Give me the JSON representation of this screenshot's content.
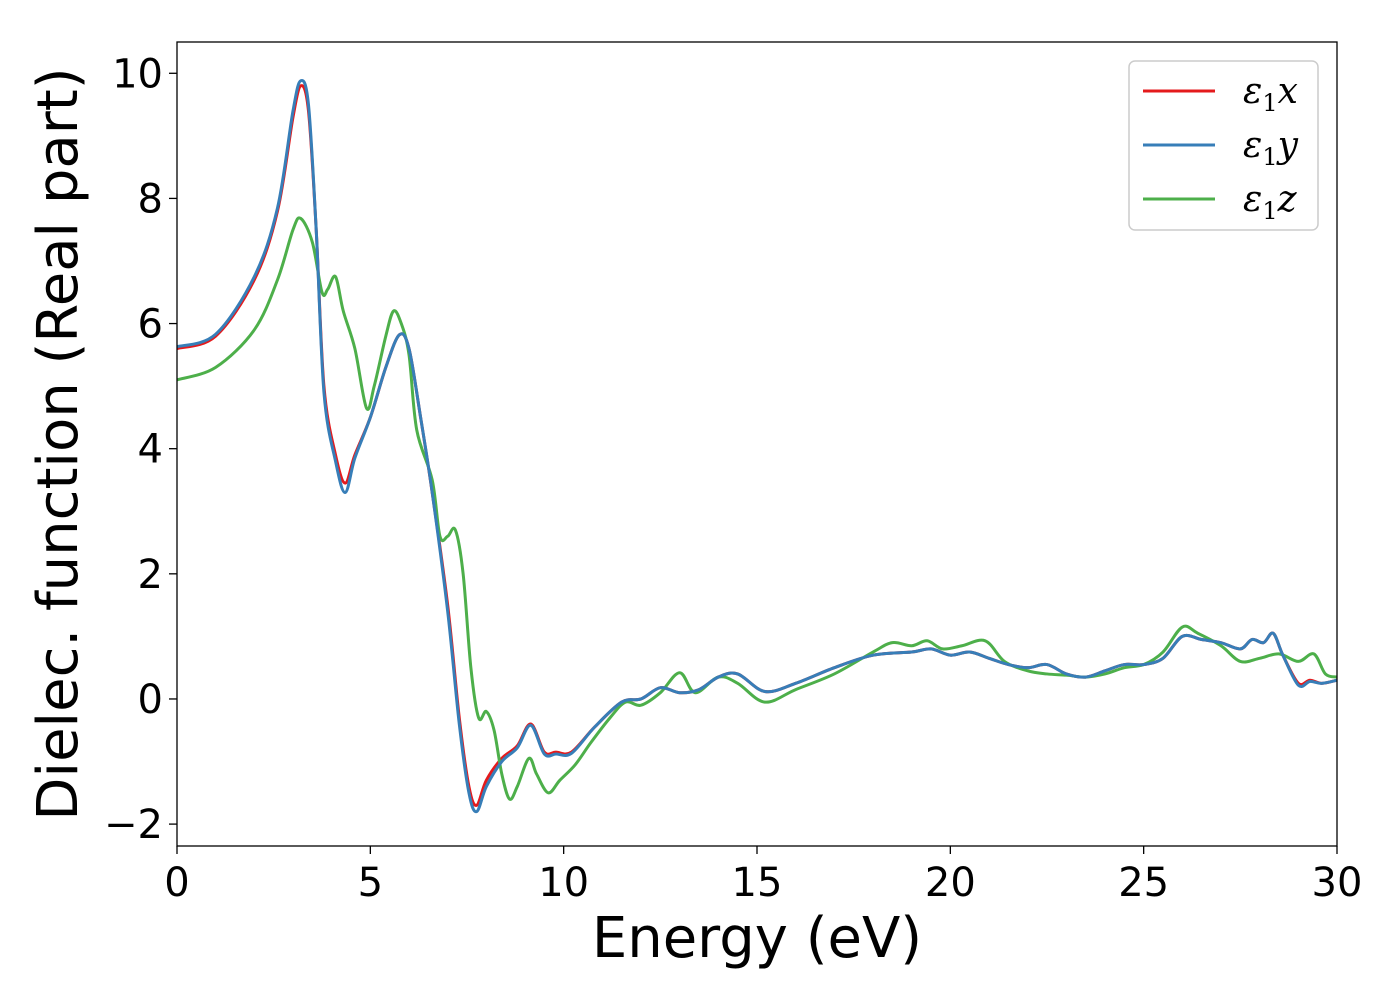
{
  "chart_data": {
    "type": "line",
    "xlabel": "Energy (eV)",
    "ylabel": "Dielec. function (Real part)",
    "xlim": [
      0,
      30
    ],
    "ylim": [
      -2.35,
      10.5
    ],
    "xticks": [
      0,
      5,
      10,
      15,
      20,
      25,
      30
    ],
    "yticks": [
      -2,
      0,
      2,
      4,
      6,
      8,
      10
    ],
    "ytick_labels": [
      "−2",
      "0",
      "2",
      "4",
      "6",
      "8",
      "10"
    ],
    "grid": false,
    "legend": {
      "placement": "top-right"
    },
    "series": [
      {
        "name": "ε1x",
        "symbol": "ε",
        "sub": "1",
        "axis": "x",
        "color": "#e41a1c",
        "points": [
          [
            0,
            5.6
          ],
          [
            1,
            5.8
          ],
          [
            2,
            6.7
          ],
          [
            2.6,
            7.8
          ],
          [
            3.0,
            9.3
          ],
          [
            3.2,
            9.8
          ],
          [
            3.4,
            9.4
          ],
          [
            3.6,
            7.5
          ],
          [
            3.8,
            5.0
          ],
          [
            4.1,
            3.9
          ],
          [
            4.35,
            3.45
          ],
          [
            4.6,
            3.9
          ],
          [
            5.0,
            4.5
          ],
          [
            5.4,
            5.3
          ],
          [
            5.75,
            5.82
          ],
          [
            6.0,
            5.6
          ],
          [
            6.3,
            4.5
          ],
          [
            6.6,
            3.3
          ],
          [
            7.0,
            1.5
          ],
          [
            7.3,
            -0.3
          ],
          [
            7.55,
            -1.4
          ],
          [
            7.75,
            -1.7
          ],
          [
            8.0,
            -1.3
          ],
          [
            8.4,
            -0.95
          ],
          [
            8.8,
            -0.75
          ],
          [
            9.15,
            -0.4
          ],
          [
            9.5,
            -0.85
          ],
          [
            9.8,
            -0.85
          ],
          [
            10.2,
            -0.85
          ],
          [
            10.8,
            -0.45
          ],
          [
            11.5,
            -0.05
          ],
          [
            12.0,
            0.0
          ],
          [
            12.5,
            0.18
          ],
          [
            13.0,
            0.1
          ],
          [
            13.5,
            0.15
          ],
          [
            14.0,
            0.35
          ],
          [
            14.5,
            0.4
          ],
          [
            15.2,
            0.12
          ],
          [
            16.0,
            0.25
          ],
          [
            17.0,
            0.5
          ],
          [
            18.0,
            0.7
          ],
          [
            19.0,
            0.75
          ],
          [
            19.5,
            0.8
          ],
          [
            20.0,
            0.7
          ],
          [
            20.5,
            0.75
          ],
          [
            21.0,
            0.65
          ],
          [
            21.5,
            0.55
          ],
          [
            22.0,
            0.5
          ],
          [
            22.5,
            0.55
          ],
          [
            23.0,
            0.4
          ],
          [
            23.5,
            0.35
          ],
          [
            24.0,
            0.45
          ],
          [
            24.5,
            0.55
          ],
          [
            25.0,
            0.55
          ],
          [
            25.5,
            0.65
          ],
          [
            26.0,
            1.0
          ],
          [
            26.5,
            0.95
          ],
          [
            27.0,
            0.9
          ],
          [
            27.5,
            0.8
          ],
          [
            27.8,
            0.95
          ],
          [
            28.1,
            0.9
          ],
          [
            28.35,
            1.05
          ],
          [
            28.6,
            0.7
          ],
          [
            29.0,
            0.25
          ],
          [
            29.3,
            0.3
          ],
          [
            29.6,
            0.25
          ],
          [
            30.0,
            0.3
          ]
        ]
      },
      {
        "name": "ε1y",
        "symbol": "ε",
        "sub": "1",
        "axis": "y",
        "color": "#377eb8",
        "points": [
          [
            0,
            5.63
          ],
          [
            1,
            5.83
          ],
          [
            2,
            6.75
          ],
          [
            2.6,
            7.85
          ],
          [
            3.0,
            9.4
          ],
          [
            3.2,
            9.88
          ],
          [
            3.4,
            9.5
          ],
          [
            3.6,
            7.5
          ],
          [
            3.8,
            4.9
          ],
          [
            4.1,
            3.8
          ],
          [
            4.35,
            3.3
          ],
          [
            4.6,
            3.85
          ],
          [
            5.0,
            4.5
          ],
          [
            5.4,
            5.3
          ],
          [
            5.75,
            5.82
          ],
          [
            6.0,
            5.6
          ],
          [
            6.3,
            4.5
          ],
          [
            6.6,
            3.3
          ],
          [
            7.0,
            1.4
          ],
          [
            7.3,
            -0.4
          ],
          [
            7.55,
            -1.5
          ],
          [
            7.75,
            -1.8
          ],
          [
            8.0,
            -1.4
          ],
          [
            8.4,
            -1.0
          ],
          [
            8.8,
            -0.78
          ],
          [
            9.15,
            -0.42
          ],
          [
            9.5,
            -0.88
          ],
          [
            9.8,
            -0.88
          ],
          [
            10.2,
            -0.87
          ],
          [
            10.8,
            -0.45
          ],
          [
            11.5,
            -0.05
          ],
          [
            12.0,
            0.0
          ],
          [
            12.5,
            0.18
          ],
          [
            13.0,
            0.1
          ],
          [
            13.5,
            0.15
          ],
          [
            14.0,
            0.35
          ],
          [
            14.5,
            0.4
          ],
          [
            15.2,
            0.12
          ],
          [
            16.0,
            0.25
          ],
          [
            17.0,
            0.5
          ],
          [
            18.0,
            0.7
          ],
          [
            19.0,
            0.75
          ],
          [
            19.5,
            0.8
          ],
          [
            20.0,
            0.7
          ],
          [
            20.5,
            0.75
          ],
          [
            21.0,
            0.65
          ],
          [
            21.5,
            0.55
          ],
          [
            22.0,
            0.5
          ],
          [
            22.5,
            0.55
          ],
          [
            23.0,
            0.4
          ],
          [
            23.5,
            0.35
          ],
          [
            24.0,
            0.45
          ],
          [
            24.5,
            0.55
          ],
          [
            25.0,
            0.55
          ],
          [
            25.5,
            0.65
          ],
          [
            26.0,
            1.0
          ],
          [
            26.5,
            0.95
          ],
          [
            27.0,
            0.9
          ],
          [
            27.5,
            0.8
          ],
          [
            27.8,
            0.95
          ],
          [
            28.1,
            0.9
          ],
          [
            28.35,
            1.05
          ],
          [
            28.6,
            0.7
          ],
          [
            29.0,
            0.22
          ],
          [
            29.3,
            0.28
          ],
          [
            29.6,
            0.25
          ],
          [
            30.0,
            0.3
          ]
        ]
      },
      {
        "name": "ε1z",
        "symbol": "ε",
        "sub": "1",
        "axis": "z",
        "color": "#4daf4a",
        "points": [
          [
            0,
            5.1
          ],
          [
            1,
            5.3
          ],
          [
            2,
            5.9
          ],
          [
            2.6,
            6.7
          ],
          [
            3.0,
            7.5
          ],
          [
            3.2,
            7.68
          ],
          [
            3.5,
            7.3
          ],
          [
            3.75,
            6.5
          ],
          [
            3.9,
            6.55
          ],
          [
            4.1,
            6.75
          ],
          [
            4.3,
            6.2
          ],
          [
            4.6,
            5.6
          ],
          [
            4.9,
            4.65
          ],
          [
            5.1,
            5.0
          ],
          [
            5.4,
            5.8
          ],
          [
            5.6,
            6.2
          ],
          [
            5.8,
            6.0
          ],
          [
            6.0,
            5.5
          ],
          [
            6.2,
            4.3
          ],
          [
            6.6,
            3.5
          ],
          [
            6.8,
            2.6
          ],
          [
            7.0,
            2.6
          ],
          [
            7.2,
            2.7
          ],
          [
            7.4,
            2.0
          ],
          [
            7.6,
            0.5
          ],
          [
            7.8,
            -0.3
          ],
          [
            8.0,
            -0.2
          ],
          [
            8.2,
            -0.5
          ],
          [
            8.4,
            -1.2
          ],
          [
            8.6,
            -1.6
          ],
          [
            8.8,
            -1.4
          ],
          [
            9.1,
            -0.95
          ],
          [
            9.3,
            -1.2
          ],
          [
            9.6,
            -1.5
          ],
          [
            9.9,
            -1.3
          ],
          [
            10.3,
            -1.05
          ],
          [
            10.7,
            -0.7
          ],
          [
            11.2,
            -0.3
          ],
          [
            11.6,
            -0.05
          ],
          [
            12.0,
            -0.1
          ],
          [
            12.5,
            0.1
          ],
          [
            13.0,
            0.42
          ],
          [
            13.4,
            0.1
          ],
          [
            14.0,
            0.35
          ],
          [
            14.5,
            0.25
          ],
          [
            15.2,
            -0.05
          ],
          [
            16.0,
            0.15
          ],
          [
            17.0,
            0.4
          ],
          [
            18.0,
            0.75
          ],
          [
            18.5,
            0.9
          ],
          [
            19.0,
            0.85
          ],
          [
            19.4,
            0.93
          ],
          [
            19.8,
            0.8
          ],
          [
            20.3,
            0.85
          ],
          [
            20.9,
            0.93
          ],
          [
            21.4,
            0.6
          ],
          [
            22.0,
            0.45
          ],
          [
            22.5,
            0.4
          ],
          [
            23.0,
            0.38
          ],
          [
            23.5,
            0.35
          ],
          [
            24.0,
            0.4
          ],
          [
            24.5,
            0.5
          ],
          [
            25.0,
            0.55
          ],
          [
            25.5,
            0.75
          ],
          [
            26.0,
            1.15
          ],
          [
            26.4,
            1.05
          ],
          [
            27.0,
            0.85
          ],
          [
            27.5,
            0.6
          ],
          [
            28.0,
            0.65
          ],
          [
            28.5,
            0.72
          ],
          [
            29.0,
            0.6
          ],
          [
            29.4,
            0.72
          ],
          [
            29.7,
            0.4
          ],
          [
            30.0,
            0.35
          ]
        ]
      }
    ]
  }
}
